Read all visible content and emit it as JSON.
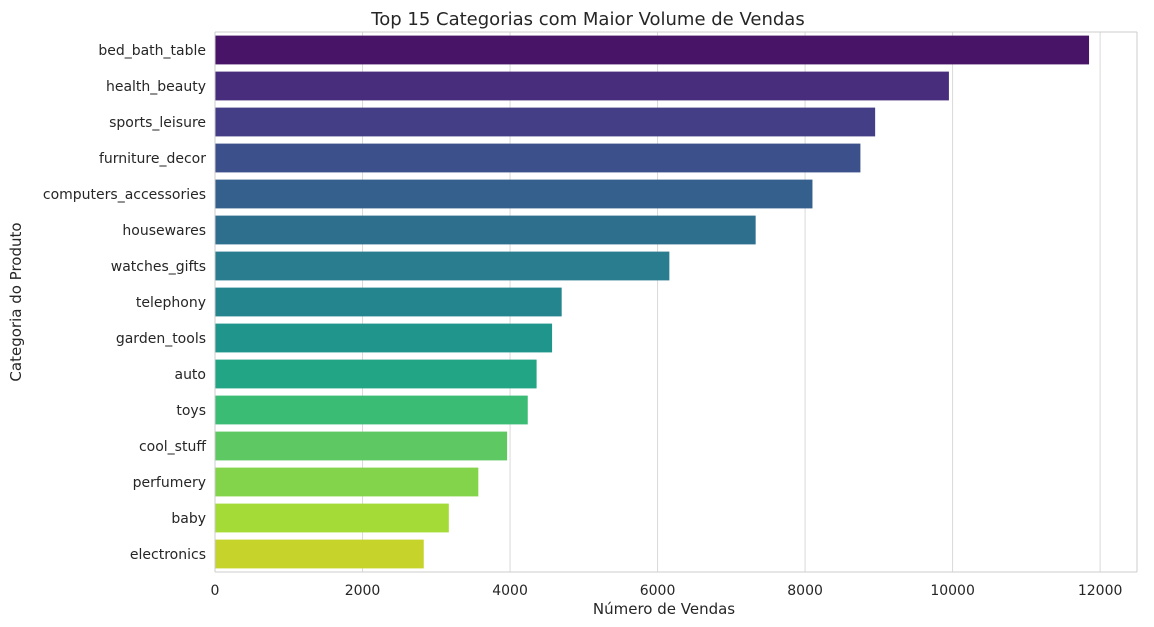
{
  "chart_data": {
    "type": "bar",
    "orientation": "horizontal",
    "title": "Top 15 Categorias com Maior Volume de Vendas",
    "xlabel": "Número de Vendas",
    "ylabel": "Categoria do Produto",
    "xlim": [
      0,
      12500
    ],
    "xticks": [
      "0",
      "2000",
      "4000",
      "6000",
      "8000",
      "10000",
      "12000"
    ],
    "grid": true,
    "categories": [
      "bed_bath_table",
      "health_beauty",
      "sports_leisure",
      "furniture_decor",
      "computers_accessories",
      "housewares",
      "watches_gifts",
      "telephony",
      "garden_tools",
      "auto",
      "toys",
      "cool_stuff",
      "perfumery",
      "baby",
      "electronics"
    ],
    "values": [
      11850,
      9950,
      8950,
      8750,
      8100,
      7330,
      6160,
      4700,
      4570,
      4360,
      4240,
      3960,
      3570,
      3170,
      2830
    ],
    "colors": [
      "#481467",
      "#472d7b",
      "#433e85",
      "#3c508b",
      "#35608d",
      "#2f6f8e",
      "#2a7d8e",
      "#25858e",
      "#1f958b",
      "#21a585",
      "#3bbc75",
      "#5ec962",
      "#84d44b",
      "#a5db36",
      "#c6d32a"
    ]
  }
}
